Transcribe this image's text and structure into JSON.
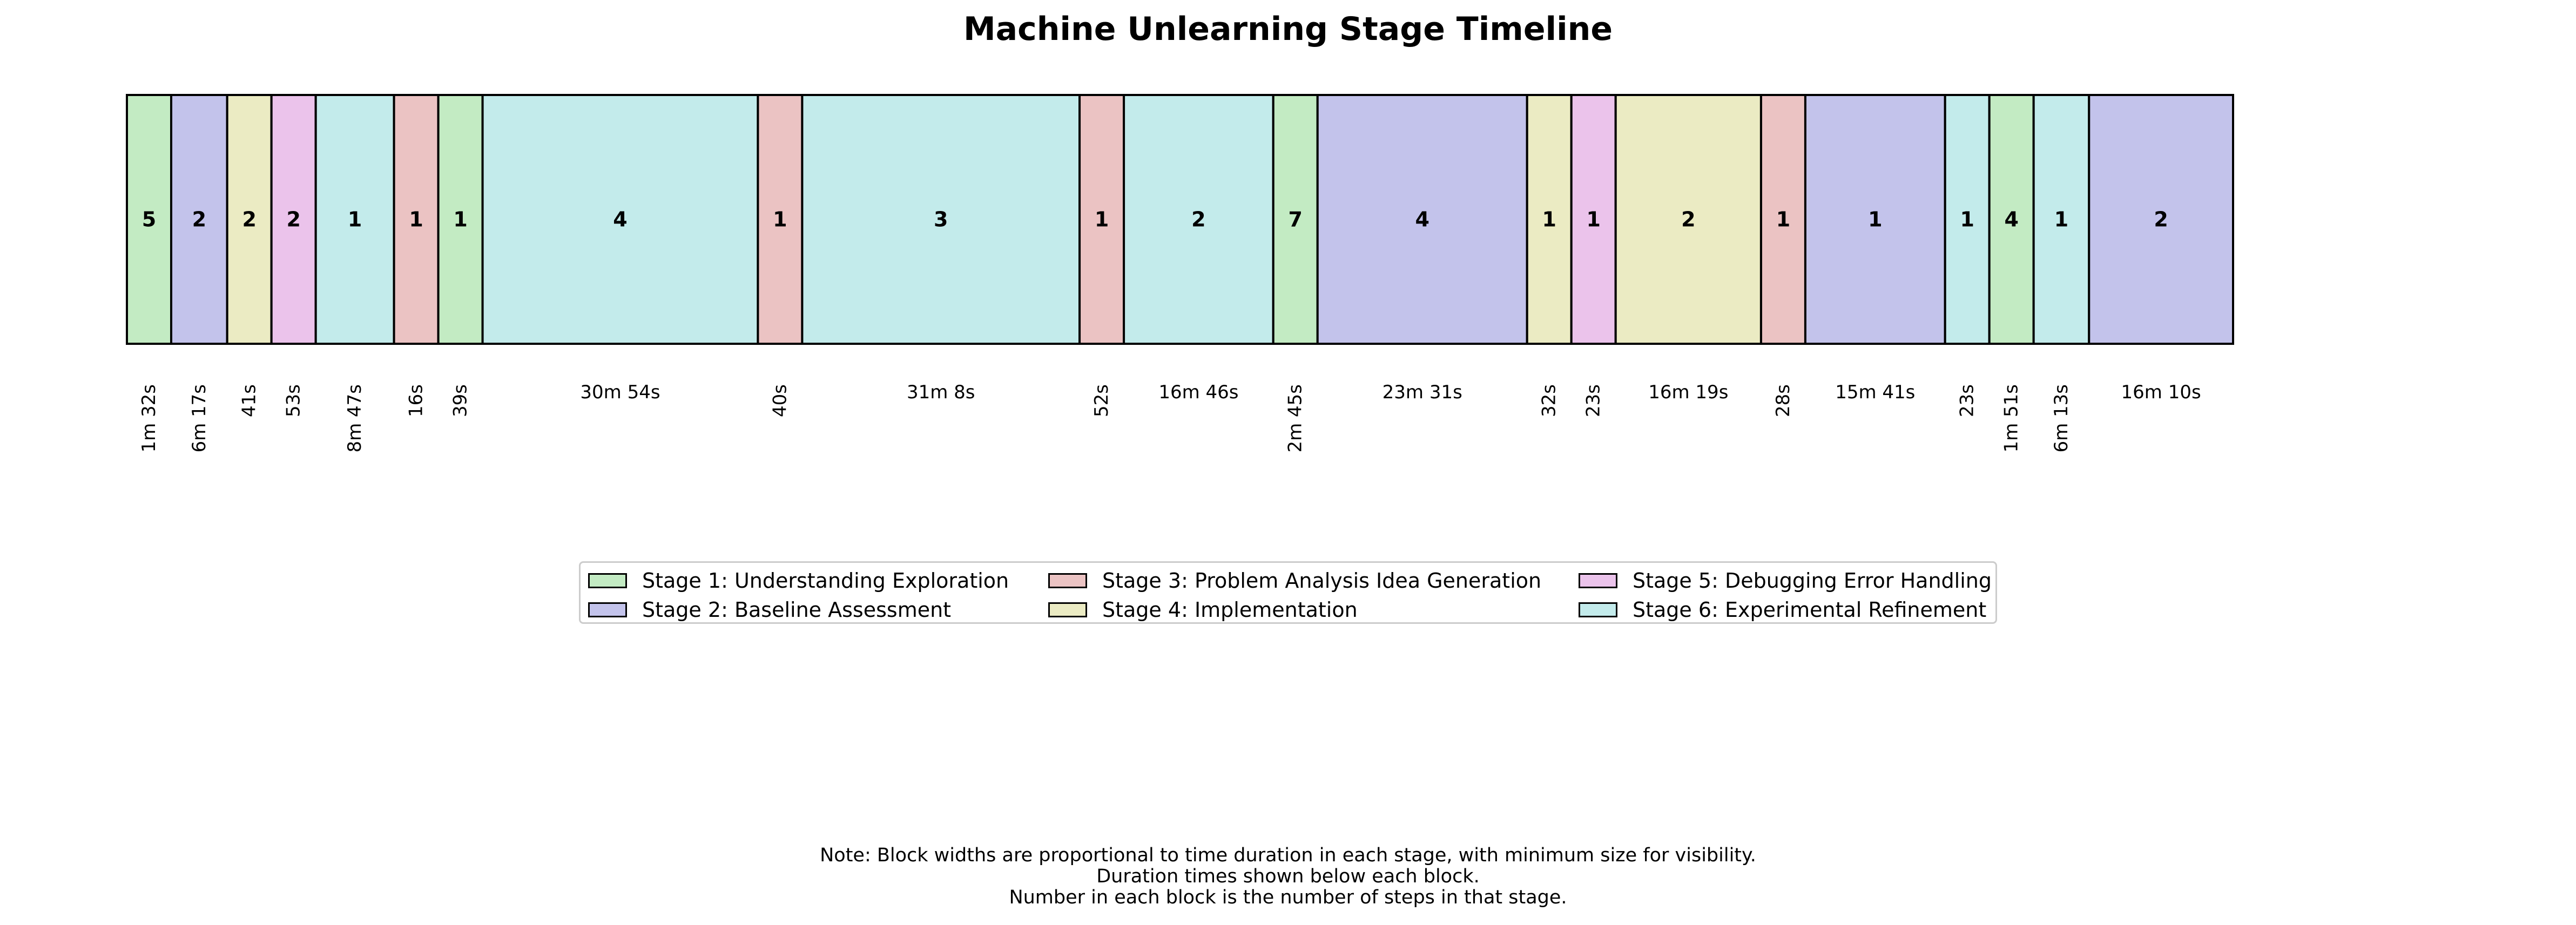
{
  "chart_data": {
    "type": "timeline",
    "title": "Machine Unlearning Stage Timeline",
    "stages": [
      {
        "id": 1,
        "label": "Stage 1: Understanding Exploration",
        "color": "#c3ebc3"
      },
      {
        "id": 2,
        "label": "Stage 2: Baseline Assessment",
        "color": "#c3c3eb"
      },
      {
        "id": 3,
        "label": "Stage 3: Problem Analysis Idea Generation",
        "color": "#ebc3c3"
      },
      {
        "id": 4,
        "label": "Stage 4: Implementation",
        "color": "#ebebc3"
      },
      {
        "id": 5,
        "label": "Stage 5: Debugging Error Handling",
        "color": "#ebc3eb"
      },
      {
        "id": 6,
        "label": "Stage 6: Experimental Refinement",
        "color": "#c3ebeb"
      }
    ],
    "blocks": [
      {
        "stage": 1,
        "steps": "5",
        "duration": "1m 32s",
        "seconds": 92
      },
      {
        "stage": 2,
        "steps": "2",
        "duration": "6m 17s",
        "seconds": 377
      },
      {
        "stage": 4,
        "steps": "2",
        "duration": "41s",
        "seconds": 41
      },
      {
        "stage": 5,
        "steps": "2",
        "duration": "53s",
        "seconds": 53
      },
      {
        "stage": 6,
        "steps": "1",
        "duration": "8m 47s",
        "seconds": 527
      },
      {
        "stage": 3,
        "steps": "1",
        "duration": "16s",
        "seconds": 16
      },
      {
        "stage": 1,
        "steps": "1",
        "duration": "39s",
        "seconds": 39
      },
      {
        "stage": 6,
        "steps": "4",
        "duration": "30m 54s",
        "seconds": 1854
      },
      {
        "stage": 3,
        "steps": "1",
        "duration": "40s",
        "seconds": 40
      },
      {
        "stage": 6,
        "steps": "3",
        "duration": "31m 8s",
        "seconds": 1868
      },
      {
        "stage": 3,
        "steps": "1",
        "duration": "52s",
        "seconds": 52
      },
      {
        "stage": 6,
        "steps": "2",
        "duration": "16m 46s",
        "seconds": 1006
      },
      {
        "stage": 1,
        "steps": "7",
        "duration": "2m 45s",
        "seconds": 165
      },
      {
        "stage": 2,
        "steps": "4",
        "duration": "23m 31s",
        "seconds": 1411
      },
      {
        "stage": 4,
        "steps": "1",
        "duration": "32s",
        "seconds": 32
      },
      {
        "stage": 5,
        "steps": "1",
        "duration": "23s",
        "seconds": 23
      },
      {
        "stage": 4,
        "steps": "2",
        "duration": "16m 19s",
        "seconds": 979
      },
      {
        "stage": 3,
        "steps": "1",
        "duration": "28s",
        "seconds": 28
      },
      {
        "stage": 2,
        "steps": "1",
        "duration": "15m 41s",
        "seconds": 941
      },
      {
        "stage": 6,
        "steps": "1",
        "duration": "23s",
        "seconds": 23
      },
      {
        "stage": 1,
        "steps": "4",
        "duration": "1m 51s",
        "seconds": 111
      },
      {
        "stage": 6,
        "steps": "1",
        "duration": "6m 13s",
        "seconds": 373
      },
      {
        "stage": 2,
        "steps": "2",
        "duration": "16m 10s",
        "seconds": 970
      }
    ],
    "legend_position": "lower-center",
    "notes": [
      "Note: Block widths are proportional to time duration in each stage, with minimum size for visibility.",
      "Duration times shown below each block.",
      "Number in each block is the number of steps in that stage."
    ]
  }
}
